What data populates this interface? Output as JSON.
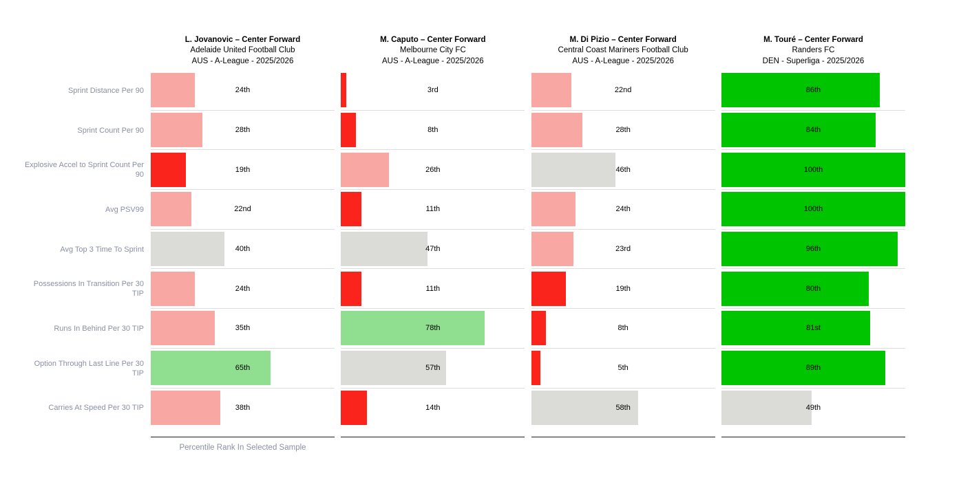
{
  "palette": {
    "bright_red": "#FA241C",
    "light_red": "#F9A7A3",
    "gray": "#DBDBD7",
    "light_green": "#90DE90",
    "bright_green": "#00C400"
  },
  "players": [
    {
      "name": "L. Jovanovic – Center Forward",
      "club": "Adelaide United Football Club",
      "league": "AUS - A-League - 2025/2026"
    },
    {
      "name": "M. Caputo – Center Forward",
      "club": "Melbourne City FC",
      "league": "AUS - A-League - 2025/2026"
    },
    {
      "name": "M. Di Pizio – Center Forward",
      "club": "Central Coast Mariners Football Club",
      "league": "AUS - A-League - 2025/2026"
    },
    {
      "name": "M. Touré – Center Forward",
      "club": "Randers FC",
      "league": "DEN - Superliga - 2025/2026"
    }
  ],
  "chart_data": {
    "type": "bar",
    "orientation": "horizontal",
    "title": "",
    "xlabel": "Percentile Rank In Selected Sample",
    "xlim": [
      0,
      100
    ],
    "grid": false,
    "legend": false,
    "categories": [
      "Sprint Distance Per 90",
      "Sprint Count Per 90",
      "Explosive Accel to Sprint Count Per 90",
      "Avg PSV99",
      "Avg Top 3 Time To Sprint",
      "Possessions In Transition Per 30 TIP",
      "Runs In Behind Per 30 TIP",
      "Option Through Last Line Per 30 TIP",
      "Carries At Speed Per 30 TIP"
    ],
    "series": [
      {
        "name": "L. Jovanovic",
        "values": [
          24,
          28,
          19,
          22,
          40,
          24,
          35,
          65,
          38
        ],
        "labels": [
          "24th",
          "28th",
          "19th",
          "22nd",
          "40th",
          "24th",
          "35th",
          "65th",
          "38th"
        ],
        "colors": [
          "light_red",
          "light_red",
          "bright_red",
          "light_red",
          "gray",
          "light_red",
          "light_red",
          "light_green",
          "light_red"
        ]
      },
      {
        "name": "M. Caputo",
        "values": [
          3,
          8,
          26,
          11,
          47,
          11,
          78,
          57,
          14
        ],
        "labels": [
          "3rd",
          "8th",
          "26th",
          "11th",
          "47th",
          "11th",
          "78th",
          "57th",
          "14th"
        ],
        "colors": [
          "bright_red",
          "bright_red",
          "light_red",
          "bright_red",
          "gray",
          "bright_red",
          "light_green",
          "gray",
          "bright_red"
        ]
      },
      {
        "name": "M. Di Pizio",
        "values": [
          22,
          28,
          46,
          24,
          23,
          19,
          8,
          5,
          58
        ],
        "labels": [
          "22nd",
          "28th",
          "46th",
          "24th",
          "23rd",
          "19th",
          "8th",
          "5th",
          "58th"
        ],
        "colors": [
          "light_red",
          "light_red",
          "gray",
          "light_red",
          "light_red",
          "bright_red",
          "bright_red",
          "bright_red",
          "gray"
        ]
      },
      {
        "name": "M. Touré",
        "values": [
          86,
          84,
          100,
          100,
          96,
          80,
          81,
          89,
          49
        ],
        "labels": [
          "86th",
          "84th",
          "100th",
          "100th",
          "96th",
          "80th",
          "81st",
          "89th",
          "49th"
        ],
        "colors": [
          "bright_green",
          "bright_green",
          "bright_green",
          "bright_green",
          "bright_green",
          "bright_green",
          "bright_green",
          "bright_green",
          "gray"
        ]
      }
    ]
  }
}
